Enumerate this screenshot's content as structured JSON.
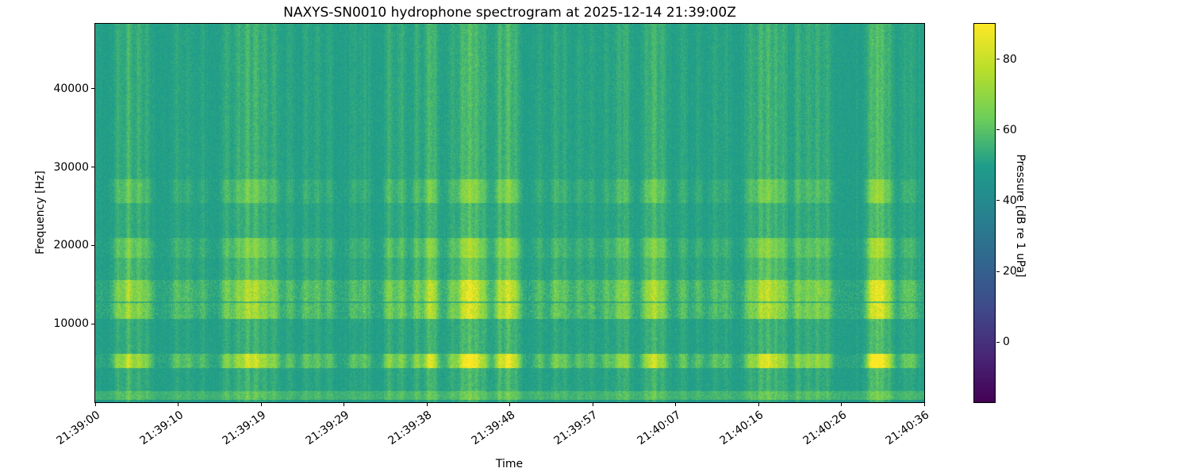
{
  "chart_data": {
    "type": "heatmap",
    "subtype": "spectrogram",
    "title": "NAXYS-SN0010 hydrophone spectrogram at 2025-12-14 21:39:00Z",
    "xlabel": "Time",
    "ylabel": "Frequency [Hz]",
    "colorbar_label": "Pressure [dB re 1 uPa]",
    "colormap": "viridis",
    "colormap_stops": [
      "#440154",
      "#482777",
      "#3f4a8a",
      "#31678e",
      "#26838f",
      "#1f9d8a",
      "#6cce5a",
      "#b6de2b",
      "#fee825"
    ],
    "x_tick_labels": [
      "21:39:00",
      "21:39:10",
      "21:39:19",
      "21:39:29",
      "21:39:38",
      "21:39:48",
      "21:39:57",
      "21:40:07",
      "21:40:16",
      "21:40:26",
      "21:40:36"
    ],
    "x_range_seconds": [
      0,
      96
    ],
    "y_tick_values": [
      10000,
      20000,
      30000,
      40000
    ],
    "y_range_hz": [
      0,
      48300
    ],
    "colorbar_ticks": [
      0,
      20,
      40,
      60,
      80
    ],
    "colorbar_range": [
      -17,
      90
    ],
    "background_level_db": 50,
    "default_noise_db": 2.3,
    "default_transient_gain": 0.15,
    "low_cut": {
      "f_hi": 350,
      "drop_db": 3
    },
    "bands": [
      {
        "f_lo": 350,
        "f_hi": 1500,
        "boost_db": 5,
        "noise_db": 3,
        "transient_gain": 0.2
      },
      {
        "f_lo": 4400,
        "f_hi": 6200,
        "boost_db": 1.5,
        "noise_db": 4,
        "transient_gain": 1.0
      },
      {
        "f_lo": 10700,
        "f_hi": 12700,
        "boost_db": 2,
        "noise_db": 4.5,
        "transient_gain": 0.75
      },
      {
        "f_lo": 12900,
        "f_hi": 15600,
        "boost_db": 2,
        "noise_db": 4.5,
        "transient_gain": 0.8
      },
      {
        "f_lo": 15600,
        "f_hi": 18500,
        "boost_db": 0,
        "noise_db": 2.6,
        "transient_gain": 0.3
      },
      {
        "f_lo": 18500,
        "f_hi": 21000,
        "boost_db": 0.5,
        "noise_db": 3,
        "transient_gain": 0.55
      },
      {
        "f_lo": 25500,
        "f_hi": 28500,
        "boost_db": 0,
        "noise_db": 2.8,
        "transient_gain": 0.45
      }
    ],
    "transients": [
      {
        "t": 2.6,
        "s": 0.5
      },
      {
        "t": 3.8,
        "s": 0.85
      },
      {
        "t": 5.0,
        "s": 0.6
      },
      {
        "t": 6.0,
        "s": 0.4
      },
      {
        "t": 9.4,
        "s": 0.3
      },
      {
        "t": 10.7,
        "s": 0.3
      },
      {
        "t": 12.4,
        "s": 0.25
      },
      {
        "t": 15.2,
        "s": 0.5
      },
      {
        "t": 16.5,
        "s": 0.6
      },
      {
        "t": 17.6,
        "s": 0.85
      },
      {
        "t": 18.6,
        "s": 0.8
      },
      {
        "t": 19.6,
        "s": 0.55
      },
      {
        "t": 20.7,
        "s": 0.5
      },
      {
        "t": 22.5,
        "s": 0.3
      },
      {
        "t": 24.4,
        "s": 0.35
      },
      {
        "t": 25.7,
        "s": 0.3
      },
      {
        "t": 27.1,
        "s": 0.3
      },
      {
        "t": 29.9,
        "s": 0.3
      },
      {
        "t": 31.2,
        "s": 0.3
      },
      {
        "t": 34.0,
        "s": 0.55
      },
      {
        "t": 35.4,
        "s": 0.5
      },
      {
        "t": 37.2,
        "s": 0.55
      },
      {
        "t": 38.6,
        "s": 0.85
      },
      {
        "t": 39.3,
        "s": 0.5
      },
      {
        "t": 41.3,
        "s": 0.5
      },
      {
        "t": 42.5,
        "s": 0.8
      },
      {
        "t": 43.3,
        "s": 1.0
      },
      {
        "t": 44.1,
        "s": 0.8
      },
      {
        "t": 45.0,
        "s": 0.55
      },
      {
        "t": 46.8,
        "s": 0.8
      },
      {
        "t": 47.8,
        "s": 1.0
      },
      {
        "t": 48.7,
        "s": 0.6
      },
      {
        "t": 51.4,
        "s": 0.3
      },
      {
        "t": 53.3,
        "s": 0.45
      },
      {
        "t": 54.4,
        "s": 0.3
      },
      {
        "t": 56.0,
        "s": 0.3
      },
      {
        "t": 57.4,
        "s": 0.3
      },
      {
        "t": 59.2,
        "s": 0.35
      },
      {
        "t": 60.6,
        "s": 0.5
      },
      {
        "t": 61.5,
        "s": 0.5
      },
      {
        "t": 63.8,
        "s": 0.55
      },
      {
        "t": 64.7,
        "s": 0.8
      },
      {
        "t": 65.7,
        "s": 0.55
      },
      {
        "t": 68.0,
        "s": 0.35
      },
      {
        "t": 69.8,
        "s": 0.3
      },
      {
        "t": 71.7,
        "s": 0.3
      },
      {
        "t": 73.0,
        "s": 0.3
      },
      {
        "t": 75.8,
        "s": 0.55
      },
      {
        "t": 77.0,
        "s": 0.8
      },
      {
        "t": 77.9,
        "s": 0.85
      },
      {
        "t": 78.8,
        "s": 0.6
      },
      {
        "t": 79.7,
        "s": 0.55
      },
      {
        "t": 81.3,
        "s": 0.55
      },
      {
        "t": 82.5,
        "s": 0.5
      },
      {
        "t": 83.6,
        "s": 0.55
      },
      {
        "t": 84.7,
        "s": 0.5
      },
      {
        "t": 89.8,
        "s": 0.8
      },
      {
        "t": 90.5,
        "s": 1.0
      },
      {
        "t": 91.1,
        "s": 0.8
      },
      {
        "t": 91.9,
        "s": 0.55
      },
      {
        "t": 93.7,
        "s": 0.3
      },
      {
        "t": 94.6,
        "s": 0.3
      }
    ]
  }
}
